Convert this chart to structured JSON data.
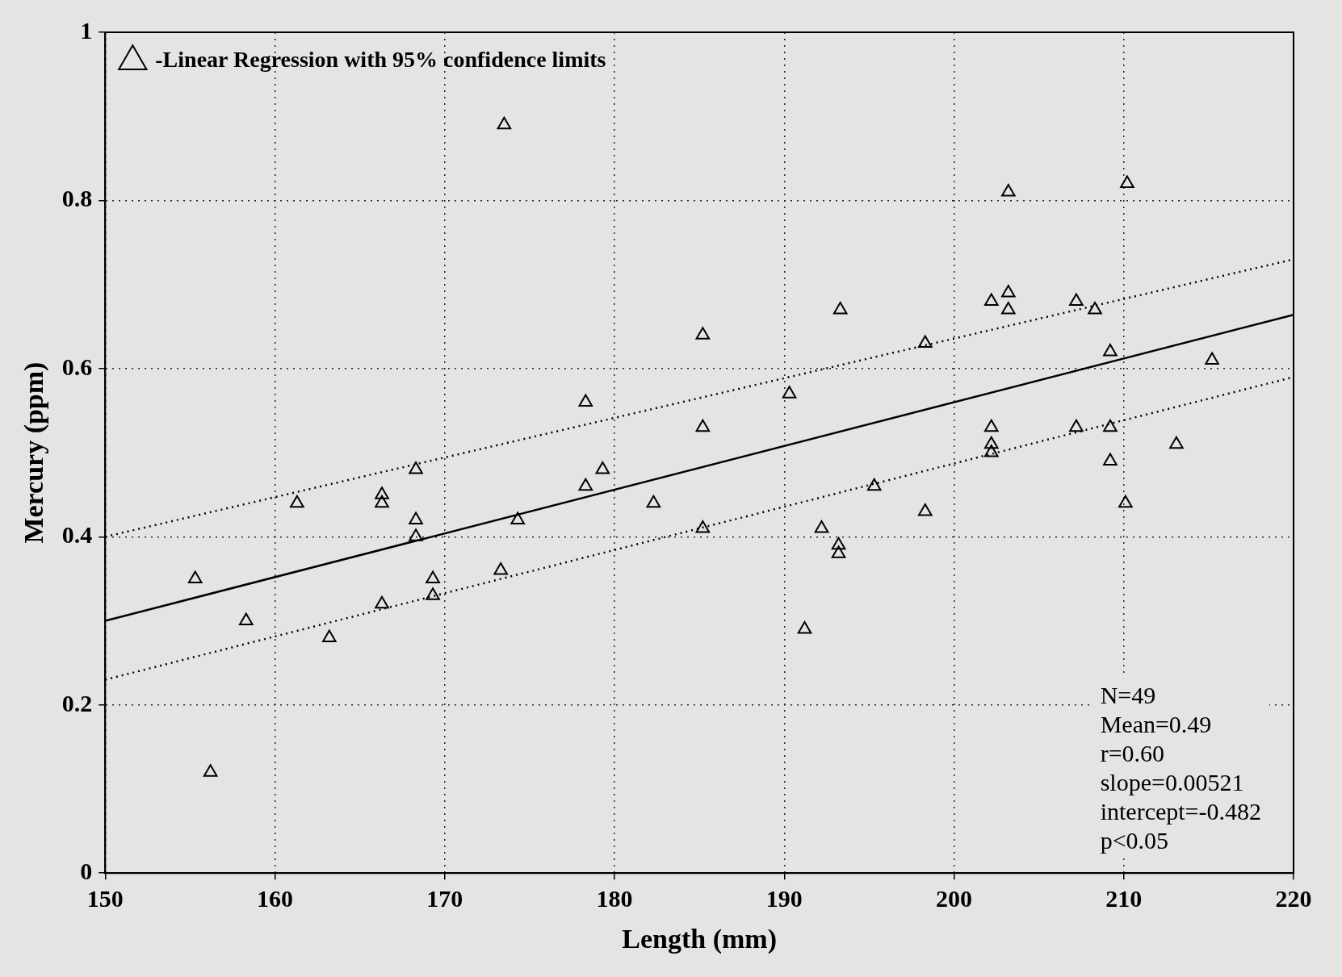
{
  "chart_data": {
    "type": "scatter",
    "xlabel": "Length (mm)",
    "ylabel": "Mercury (ppm)",
    "xlim": [
      150,
      220
    ],
    "ylim": [
      0,
      1
    ],
    "xticks": [
      150,
      160,
      170,
      180,
      190,
      200,
      210,
      220
    ],
    "yticks": [
      0,
      0.2,
      0.4,
      0.6,
      0.8,
      1
    ],
    "grid": true,
    "legend": "top left",
    "marker": "triangle",
    "annotations": [
      "N=49",
      "Mean=0.49",
      "r=0.60",
      "slope=0.00521",
      "intercept=-0.482",
      "p<0.05"
    ],
    "series": [
      {
        "name": "-Linear Regression with 95% confidence limits",
        "color": "#000000",
        "x": [
          156.2,
          163.2,
          158.3,
          155.3,
          166.3,
          169.3,
          169.3,
          173.3,
          168.3,
          168.3,
          174.3,
          166.3,
          166.3,
          161.3,
          168.3,
          178.3,
          179.3,
          178.3,
          182.3,
          185.2,
          185.2,
          185.2,
          191.2,
          193.2,
          193.2,
          192.2,
          195.3,
          198.3,
          190.3,
          198.3,
          193.3,
          202.2,
          202.2,
          202.2,
          203.2,
          203.2,
          202.2,
          203.2,
          207.2,
          209.2,
          209.2,
          210.1,
          209.2,
          208.3,
          207.2,
          210.2,
          213.1,
          215.2,
          173.5
        ],
        "values": [
          0.12,
          0.28,
          0.3,
          0.35,
          0.32,
          0.33,
          0.35,
          0.36,
          0.4,
          0.42,
          0.42,
          0.44,
          0.45,
          0.44,
          0.48,
          0.46,
          0.48,
          0.56,
          0.44,
          0.41,
          0.53,
          0.64,
          0.29,
          0.38,
          0.39,
          0.41,
          0.46,
          0.43,
          0.57,
          0.63,
          0.67,
          0.5,
          0.51,
          0.53,
          0.67,
          0.69,
          0.68,
          0.81,
          0.53,
          0.53,
          0.49,
          0.44,
          0.62,
          0.67,
          0.68,
          0.82,
          0.51,
          0.61,
          0.89
        ]
      },
      {
        "type": "line",
        "color": "#000000",
        "line_style": "solid",
        "marker": "none",
        "x": [
          150,
          220
        ],
        "values": [
          0.3,
          0.664
        ]
      },
      {
        "type": "line",
        "color": "#000000",
        "line_style": "dotted",
        "marker": "none",
        "x": [
          150,
          220
        ],
        "values": [
          0.23,
          0.59
        ]
      },
      {
        "type": "line",
        "color": "#000000",
        "line_style": "dotted",
        "marker": "none",
        "x": [
          150,
          220
        ],
        "values": [
          0.4,
          0.73
        ]
      }
    ]
  }
}
